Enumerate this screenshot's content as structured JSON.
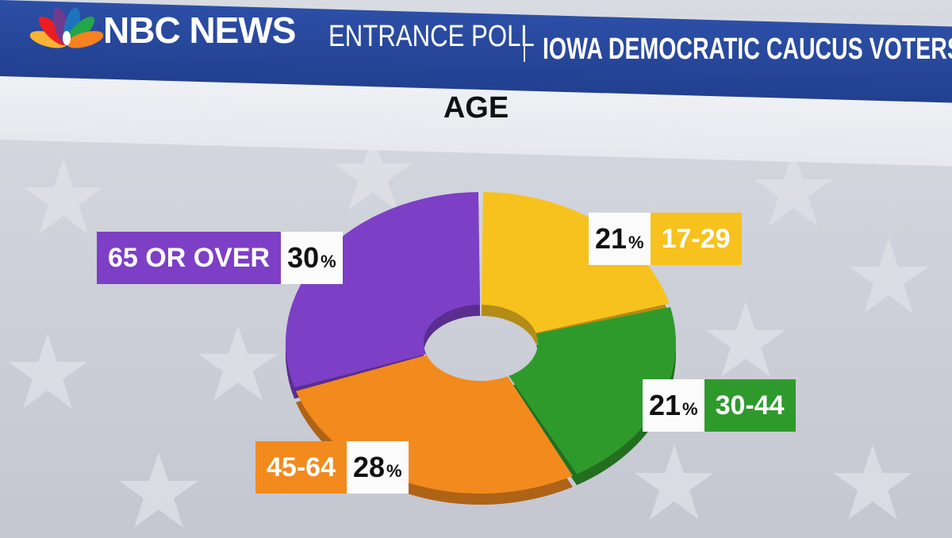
{
  "header": {
    "brand": "NBC NEWS",
    "poll_type": "ENTRANCE POLL",
    "poll_group": "IOWA DEMOCRATIC CAUCUS VOTERS",
    "logo_icon": "nbc-peacock-icon"
  },
  "chart_data": {
    "type": "pie",
    "title": "AGE",
    "categories": [
      "17-29",
      "30-44",
      "45-64",
      "65 OR OVER"
    ],
    "values": [
      21,
      21,
      28,
      30
    ],
    "value_labels": [
      "21",
      "21",
      "28",
      "30"
    ],
    "unit": "%",
    "colors": [
      "#f7c21e",
      "#2f9a2c",
      "#f28a1e",
      "#7d3fc6"
    ],
    "donut": true
  },
  "colors": {
    "header_bg": "#2548a0",
    "title_band": "#eceef2",
    "background": "#cfd2da"
  }
}
